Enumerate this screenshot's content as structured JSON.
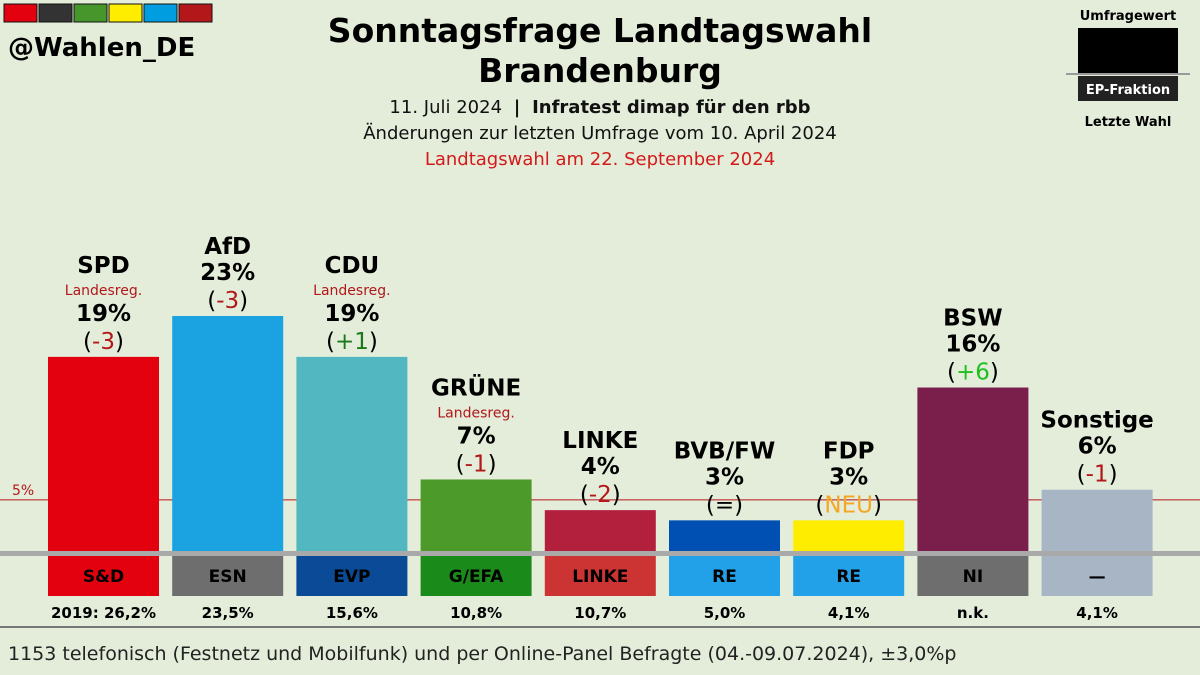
{
  "header": {
    "handle": "@Wahlen_DE",
    "title_line1": "Sonntagsfrage Landtagswahl",
    "title_line2": "Brandenburg",
    "date": "11. Juli 2024",
    "separator": "|",
    "institute": "Infratest dimap für den rbb",
    "comparison": "Änderungen zur letzten Umfrage vom 10. April 2024",
    "election": "Landtagswahl am 22. September 2024",
    "brand_colors": [
      "#e3000f",
      "#333333",
      "#46962b",
      "#ffed00",
      "#009ee0",
      "#b3171a"
    ]
  },
  "legend": {
    "top": "Umfragewert",
    "middle": "EP-Fraktion",
    "bottom": "Letzte Wahl"
  },
  "footer": {
    "note": "1153 telefonisch (Festnetz und Mobilfunk) und per Online-Panel Befragte (04.-09.07.2024), ±3,0%p"
  },
  "chart_data": {
    "type": "bar",
    "ylim": [
      0,
      23
    ],
    "threshold": {
      "value": 5,
      "label": "5%"
    },
    "categories": [
      "SPD",
      "AfD",
      "CDU",
      "GRÜNE",
      "LINKE",
      "BVB/FW",
      "FDP",
      "BSW",
      "Sonstige"
    ],
    "values": [
      19,
      23,
      19,
      7,
      4,
      3,
      3,
      16,
      6
    ],
    "value_labels": [
      "19%",
      "23%",
      "19%",
      "7%",
      "4%",
      "3%",
      "3%",
      "16%",
      "6%"
    ],
    "changes": [
      "-3",
      "-3",
      "+1",
      "-1",
      "-2",
      "=",
      "NEU",
      "+6",
      "-1"
    ],
    "change_colors": [
      "#b3171a",
      "#b3171a",
      "#1a7a1a",
      "#b3171a",
      "#b3171a",
      "#000000",
      "#f5a623",
      "#1fbf1f",
      "#b3171a"
    ],
    "government": [
      "Landesreg.",
      "",
      "Landesreg.",
      "Landesreg.",
      "",
      "",
      "",
      "",
      ""
    ],
    "bar_colors": [
      "#e3000f",
      "#1aa3e0",
      "#52b7c1",
      "#4c9a2a",
      "#b3203d",
      "#0050b4",
      "#ffed00",
      "#7a1f4b",
      "#a8b5c5"
    ],
    "factions": [
      "S&D",
      "ESN",
      "EVP",
      "G/EFA",
      "LINKE",
      "RE",
      "RE",
      "NI",
      "—"
    ],
    "faction_colors": [
      "#e3000f",
      "#6e6e6e",
      "#0a4a96",
      "#1a8a1a",
      "#cc3333",
      "#22a0e8",
      "#22a0e8",
      "#6e6e6e",
      "#a8b5c5"
    ],
    "faction_text_colors": [
      "#000000",
      "#000000",
      "#000000",
      "#000000",
      "#000000",
      "#000000",
      "#000000",
      "#000000",
      "#000000"
    ],
    "last_election": [
      "2019: 26,2%",
      "23,5%",
      "15,6%",
      "10,8%",
      "10,7%",
      "5,0%",
      "4,1%",
      "n.k.",
      "4,1%"
    ]
  }
}
